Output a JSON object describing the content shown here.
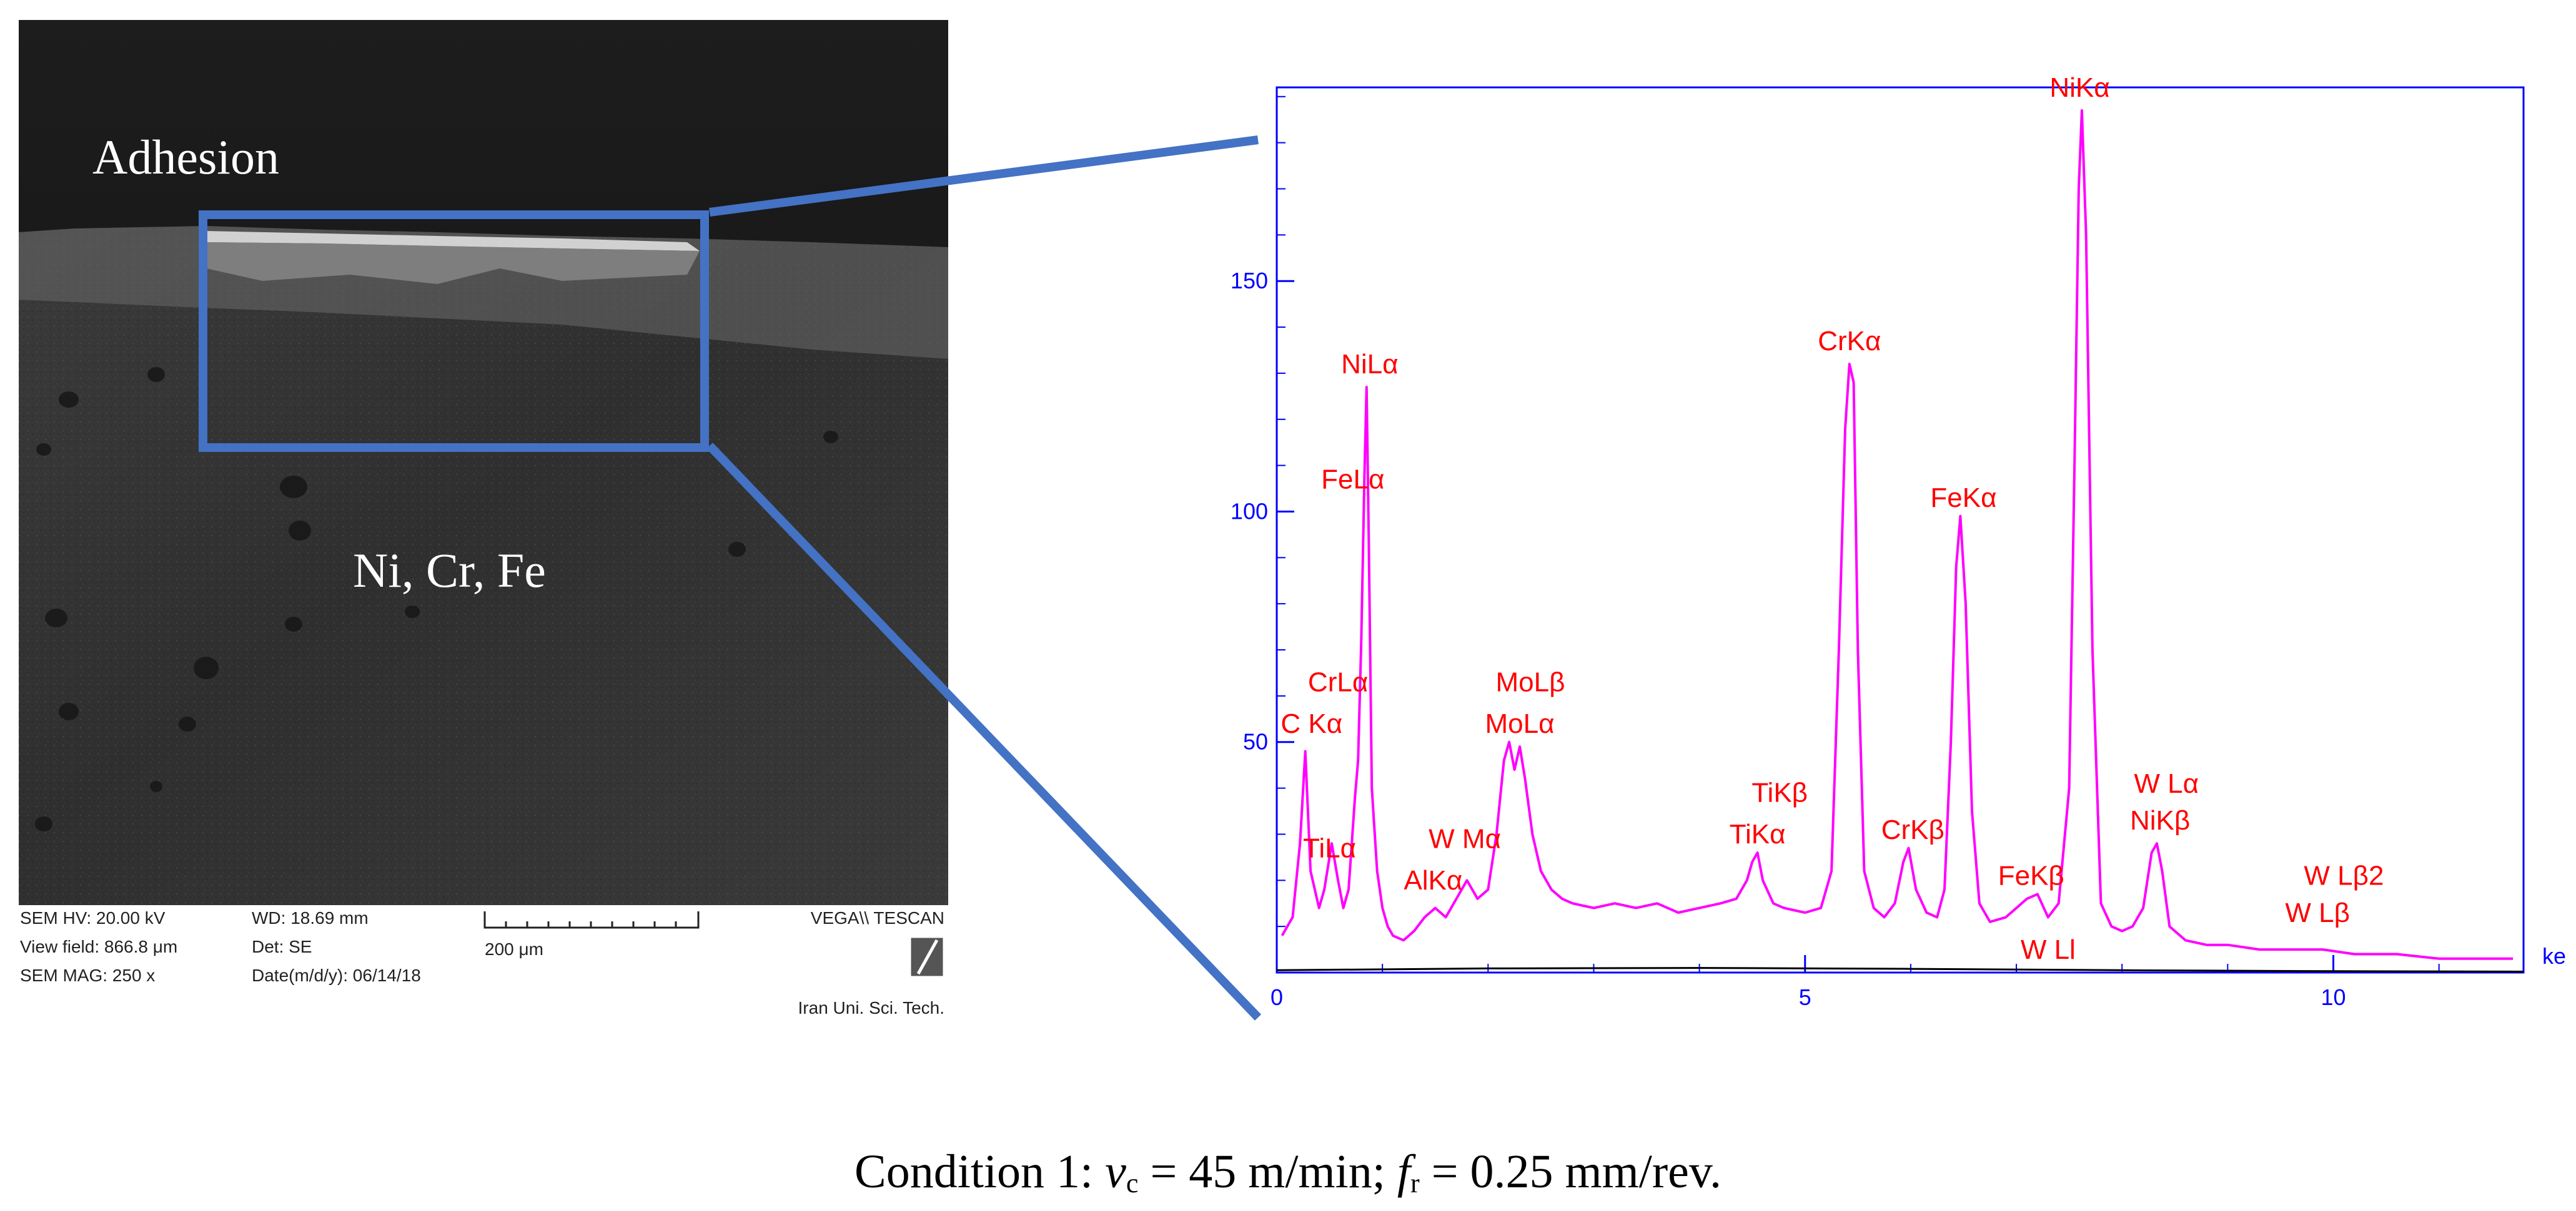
{
  "figure": {
    "caption": {
      "prefix": "Condition 1: ",
      "vc_symbol": "v",
      "vc_sub": "c",
      "vc_value": " = 45 m/min; ",
      "fr_symbol": "f",
      "fr_sub": "r",
      "fr_value": " = 0.25 mm/rev."
    }
  },
  "sem_image": {
    "label_top": "Adhesion",
    "label_middle": "Ni, Cr, Fe",
    "info": {
      "hv": "SEM HV: 20.00 kV",
      "view_field": "View field: 866.8 μm",
      "mag": "SEM MAG: 250 x",
      "wd": "WD: 18.69 mm",
      "det": "Det: SE",
      "date": "Date(m/d/y): 06/14/18",
      "scale_bar": "200 μm",
      "brand": "VEGA\\\\ TESCAN",
      "institution": "Iran Uni. Sci. Tech."
    },
    "colors": {
      "zoom_box": "#4472C4"
    }
  },
  "chart_data": {
    "type": "line",
    "title": "",
    "xlabel": "ke",
    "ylabel": "",
    "xlim": [
      0,
      11.8
    ],
    "ylim": [
      0,
      192
    ],
    "x_ticks": [
      "0",
      "5",
      "10"
    ],
    "y_ticks": [
      "50",
      "100",
      "150"
    ],
    "grid": false,
    "series": [
      {
        "color": "#FF00FF",
        "points": [
          [
            0.05,
            8
          ],
          [
            0.15,
            12
          ],
          [
            0.22,
            28
          ],
          [
            0.27,
            48
          ],
          [
            0.32,
            22
          ],
          [
            0.4,
            14
          ],
          [
            0.45,
            18
          ],
          [
            0.52,
            28
          ],
          [
            0.58,
            20
          ],
          [
            0.63,
            14
          ],
          [
            0.68,
            18
          ],
          [
            0.74,
            38
          ],
          [
            0.77,
            46
          ],
          [
            0.8,
            72
          ],
          [
            0.83,
            108
          ],
          [
            0.85,
            127
          ],
          [
            0.87,
            95
          ],
          [
            0.9,
            40
          ],
          [
            0.95,
            22
          ],
          [
            1.0,
            14
          ],
          [
            1.05,
            10
          ],
          [
            1.1,
            8
          ],
          [
            1.2,
            7
          ],
          [
            1.3,
            9
          ],
          [
            1.4,
            12
          ],
          [
            1.5,
            14
          ],
          [
            1.6,
            12
          ],
          [
            1.7,
            16
          ],
          [
            1.8,
            20
          ],
          [
            1.9,
            16
          ],
          [
            2.0,
            18
          ],
          [
            2.08,
            30
          ],
          [
            2.15,
            46
          ],
          [
            2.2,
            50
          ],
          [
            2.25,
            44
          ],
          [
            2.3,
            49
          ],
          [
            2.35,
            42
          ],
          [
            2.42,
            30
          ],
          [
            2.5,
            22
          ],
          [
            2.6,
            18
          ],
          [
            2.7,
            16
          ],
          [
            2.8,
            15
          ],
          [
            3.0,
            14
          ],
          [
            3.2,
            15
          ],
          [
            3.4,
            14
          ],
          [
            3.6,
            15
          ],
          [
            3.8,
            13
          ],
          [
            4.0,
            14
          ],
          [
            4.2,
            15
          ],
          [
            4.35,
            16
          ],
          [
            4.45,
            20
          ],
          [
            4.5,
            24
          ],
          [
            4.55,
            26
          ],
          [
            4.6,
            20
          ],
          [
            4.7,
            15
          ],
          [
            4.8,
            14
          ],
          [
            5.0,
            13
          ],
          [
            5.15,
            14
          ],
          [
            5.25,
            22
          ],
          [
            5.32,
            70
          ],
          [
            5.38,
            118
          ],
          [
            5.42,
            132
          ],
          [
            5.46,
            128
          ],
          [
            5.5,
            70
          ],
          [
            5.56,
            22
          ],
          [
            5.65,
            14
          ],
          [
            5.75,
            12
          ],
          [
            5.85,
            15
          ],
          [
            5.93,
            24
          ],
          [
            5.98,
            27
          ],
          [
            6.05,
            18
          ],
          [
            6.15,
            13
          ],
          [
            6.25,
            12
          ],
          [
            6.32,
            18
          ],
          [
            6.38,
            50
          ],
          [
            6.43,
            88
          ],
          [
            6.47,
            99
          ],
          [
            6.52,
            80
          ],
          [
            6.58,
            35
          ],
          [
            6.65,
            15
          ],
          [
            6.75,
            11
          ],
          [
            6.9,
            12
          ],
          [
            7.0,
            14
          ],
          [
            7.1,
            16
          ],
          [
            7.2,
            17
          ],
          [
            7.3,
            12
          ],
          [
            7.4,
            15
          ],
          [
            7.5,
            40
          ],
          [
            7.55,
            110
          ],
          [
            7.59,
            170
          ],
          [
            7.62,
            187
          ],
          [
            7.66,
            160
          ],
          [
            7.72,
            70
          ],
          [
            7.8,
            15
          ],
          [
            7.9,
            10
          ],
          [
            8.0,
            9
          ],
          [
            8.1,
            10
          ],
          [
            8.2,
            14
          ],
          [
            8.28,
            26
          ],
          [
            8.33,
            28
          ],
          [
            8.38,
            22
          ],
          [
            8.45,
            10
          ],
          [
            8.6,
            7
          ],
          [
            8.8,
            6
          ],
          [
            9.0,
            6
          ],
          [
            9.3,
            5
          ],
          [
            9.6,
            5
          ],
          [
            9.9,
            5
          ],
          [
            10.2,
            4
          ],
          [
            10.6,
            4
          ],
          [
            11.0,
            3
          ],
          [
            11.4,
            3
          ],
          [
            11.7,
            3
          ]
        ]
      },
      {
        "color": "#000000",
        "points": [
          [
            0.0,
            0.5
          ],
          [
            2.0,
            0.9
          ],
          [
            4.0,
            1.0
          ],
          [
            6.0,
            0.8
          ],
          [
            8.0,
            0.5
          ],
          [
            10.0,
            0.3
          ],
          [
            11.8,
            0.2
          ]
        ]
      }
    ],
    "annotations": [
      {
        "text": "NiKα",
        "x": 7.6,
        "y": 190
      },
      {
        "text": "NiLα",
        "x": 0.88,
        "y": 130
      },
      {
        "text": "FeLα",
        "x": 0.72,
        "y": 105
      },
      {
        "text": "CrLα",
        "x": 0.58,
        "y": 61
      },
      {
        "text": "C Kα",
        "x": 0.33,
        "y": 52
      },
      {
        "text": "TiLα",
        "x": 0.5,
        "y": 25
      },
      {
        "text": "MoLβ",
        "x": 2.4,
        "y": 61
      },
      {
        "text": "MoLα",
        "x": 2.3,
        "y": 52
      },
      {
        "text": "W Mα",
        "x": 1.78,
        "y": 27
      },
      {
        "text": "AlKα",
        "x": 1.48,
        "y": 18
      },
      {
        "text": "TiKβ",
        "x": 4.76,
        "y": 37
      },
      {
        "text": "TiKα",
        "x": 4.55,
        "y": 28
      },
      {
        "text": "CrKα",
        "x": 5.42,
        "y": 135
      },
      {
        "text": "CrKβ",
        "x": 6.02,
        "y": 29
      },
      {
        "text": "FeKα",
        "x": 6.5,
        "y": 101
      },
      {
        "text": "FeKβ",
        "x": 7.14,
        "y": 19
      },
      {
        "text": "W Lα",
        "x": 8.42,
        "y": 39
      },
      {
        "text": "NiKβ",
        "x": 8.36,
        "y": 31
      },
      {
        "text": "W Lβ2",
        "x": 10.1,
        "y": 19
      },
      {
        "text": "W Lβ",
        "x": 9.85,
        "y": 11
      },
      {
        "text": "W Ll",
        "x": 7.3,
        "y": 3
      }
    ],
    "colors": {
      "axis": "#0000FF",
      "labels": "#FF0000"
    }
  }
}
